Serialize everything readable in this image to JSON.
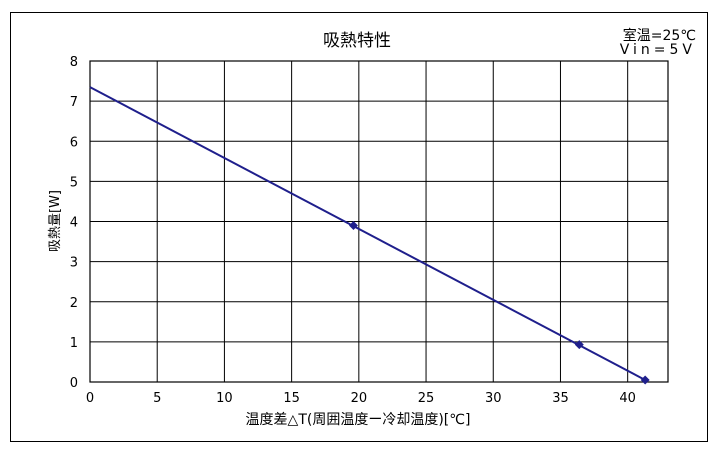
{
  "chart_data": {
    "type": "line",
    "title": "吸熱特性",
    "annotations": [
      "室温=25℃",
      "Vin=5V"
    ],
    "xlabel": "温度差△T(周囲温度ー冷却温度)[℃]",
    "ylabel": "吸熱量[W]",
    "xlim": [
      0,
      43
    ],
    "ylim": [
      0,
      8
    ],
    "xticks": [
      0,
      5,
      10,
      15,
      20,
      25,
      30,
      35,
      40
    ],
    "yticks": [
      0,
      1,
      2,
      3,
      4,
      5,
      6,
      7,
      8
    ],
    "grid": true,
    "series": [
      {
        "color": "#1f1f8c",
        "line": {
          "x": [
            0,
            41.3
          ],
          "y": [
            7.35,
            0.05
          ]
        },
        "markers": {
          "x": [
            19.6,
            36.4,
            41.3
          ],
          "y": [
            3.9,
            0.93,
            0.05
          ]
        }
      }
    ]
  }
}
